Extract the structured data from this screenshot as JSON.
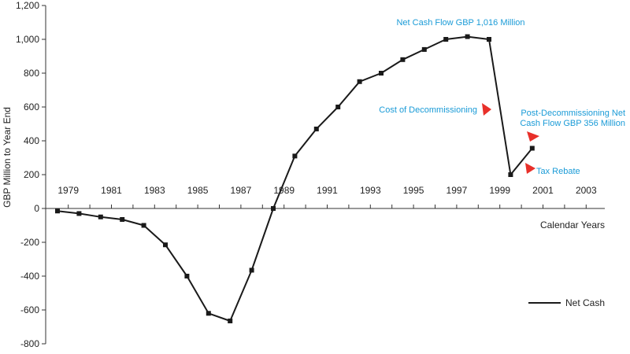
{
  "chart_data": {
    "type": "line",
    "title": "",
    "xlabel": "Calendar Years",
    "ylabel": "GBP Million to Year End",
    "ylim": [
      -800,
      1200
    ],
    "yticks": [
      1200,
      1000,
      800,
      600,
      400,
      200,
      0,
      -200,
      -400,
      -600,
      -800
    ],
    "ytick_labels": [
      "1,200",
      "1,000",
      "800",
      "600",
      "400",
      "200",
      "0",
      "-200",
      "-400",
      "-600",
      "-800"
    ],
    "xlim": [
      1978,
      2004
    ],
    "xtick_values": [
      1979,
      1981,
      1983,
      1985,
      1987,
      1989,
      1991,
      1993,
      1995,
      1997,
      1999,
      2001,
      2003
    ],
    "xtick_labels": [
      "1979",
      "1981",
      "1983",
      "1985",
      "1987",
      "1989",
      "1991",
      "1993",
      "1995",
      "1997",
      "1999",
      "2001",
      "2003"
    ],
    "grid": false,
    "legend_position": "bottom-right",
    "series": [
      {
        "name": "Net Cash",
        "color": "#1a1a1a",
        "x": [
          1978.5,
          1979.5,
          1980.5,
          1981.5,
          1982.5,
          1983.5,
          1984.5,
          1985.5,
          1986.5,
          1987.5,
          1988.5,
          1989.5,
          1990.5,
          1991.5,
          1992.5,
          1993.5,
          1994.5,
          1995.5,
          1996.5,
          1997.5,
          1998.5,
          1999.5,
          2000.5
        ],
        "y": [
          -15,
          -30,
          -50,
          -65,
          -100,
          -215,
          -400,
          -620,
          -665,
          -365,
          0,
          310,
          470,
          600,
          750,
          800,
          880,
          940,
          1000,
          1016,
          1000,
          200,
          356
        ]
      }
    ],
    "annotations": [
      {
        "text": "Net Cash Flow GBP 1,016 Million",
        "color": "#1a9bd7"
      },
      {
        "text": "Cost of Decommissioning",
        "color": "#1a9bd7"
      },
      {
        "text": "Post-Decommissioning Net",
        "color": "#1a9bd7"
      },
      {
        "text": "Cash Flow GBP 356 Million",
        "color": "#1a9bd7"
      },
      {
        "text": "Tax Rebate",
        "color": "#1a9bd7"
      }
    ],
    "arrow_color": "#e8302a"
  }
}
